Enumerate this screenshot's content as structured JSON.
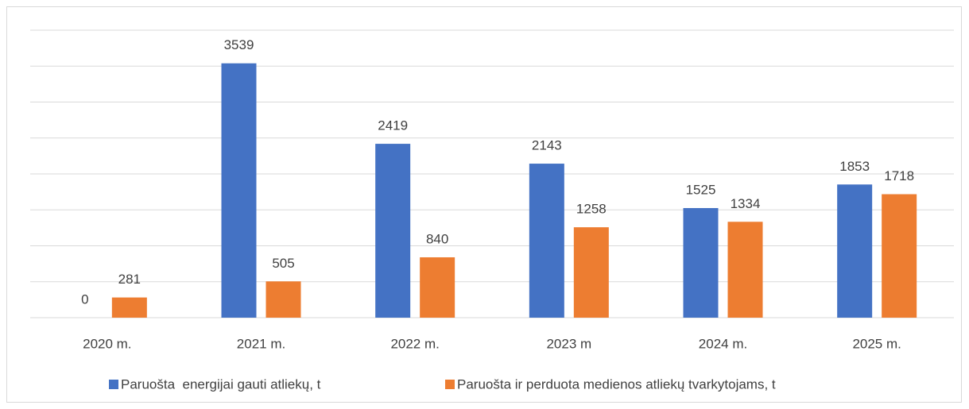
{
  "chart_data": {
    "type": "bar",
    "categories": [
      "2020 m.",
      "2021 m.",
      "2022 m.",
      "2023 m",
      "2024 m.",
      "2025 m."
    ],
    "series": [
      {
        "name": "Paruošta  energijai gauti atliekų, t",
        "color": "#4472c4",
        "values": [
          0,
          3539,
          2419,
          2143,
          1525,
          1853
        ]
      },
      {
        "name": "Paruošta ir perduota medienos atliekų tvarkytojams, t",
        "color": "#ed7d31",
        "values": [
          281,
          505,
          840,
          1258,
          1334,
          1718
        ]
      }
    ],
    "ylim": [
      0,
      4000
    ],
    "yticks": [
      0,
      500,
      1000,
      1500,
      2000,
      2500,
      3000,
      3500,
      4000
    ],
    "grid": true,
    "legend": "bottom"
  }
}
